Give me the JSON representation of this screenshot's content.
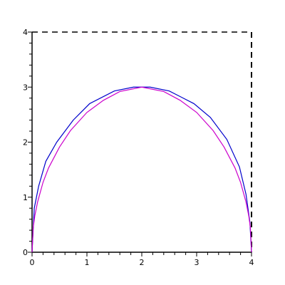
{
  "chart_data": {
    "type": "line",
    "title": "",
    "xlabel": "",
    "ylabel": "",
    "xlim": [
      0,
      4
    ],
    "ylim": [
      0,
      4
    ],
    "x_ticks": [
      "0",
      "1",
      "2",
      "3",
      "4"
    ],
    "y_ticks": [
      "0",
      "1",
      "2",
      "3",
      "4"
    ],
    "grid": false,
    "legend": "none",
    "frame_style": "dashed top and right edges",
    "series": [
      {
        "color": "#0000cc",
        "points": [
          [
            0.0,
            0.0
          ],
          [
            0.04,
            0.8
          ],
          [
            0.12,
            1.2
          ],
          [
            0.25,
            1.65
          ],
          [
            0.45,
            2.0
          ],
          [
            0.75,
            2.4
          ],
          [
            1.05,
            2.7
          ],
          [
            1.5,
            2.93
          ],
          [
            1.85,
            3.0
          ],
          [
            2.15,
            3.0
          ],
          [
            2.5,
            2.93
          ],
          [
            2.95,
            2.7
          ],
          [
            3.25,
            2.45
          ],
          [
            3.55,
            2.05
          ],
          [
            3.78,
            1.55
          ],
          [
            3.9,
            1.05
          ],
          [
            3.97,
            0.55
          ],
          [
            4.0,
            0.0
          ]
        ]
      },
      {
        "color": "#cc00cc",
        "points": [
          [
            0.0,
            0.0
          ],
          [
            0.02,
            0.44
          ],
          [
            0.05,
            0.66
          ],
          [
            0.1,
            0.91
          ],
          [
            0.2,
            1.27
          ],
          [
            0.3,
            1.53
          ],
          [
            0.5,
            1.91
          ],
          [
            0.7,
            2.21
          ],
          [
            1.0,
            2.54
          ],
          [
            1.3,
            2.76
          ],
          [
            1.6,
            2.92
          ],
          [
            2.0,
            3.0
          ],
          [
            2.4,
            2.92
          ],
          [
            2.7,
            2.76
          ],
          [
            3.0,
            2.54
          ],
          [
            3.3,
            2.21
          ],
          [
            3.5,
            1.91
          ],
          [
            3.7,
            1.53
          ],
          [
            3.8,
            1.27
          ],
          [
            3.9,
            0.91
          ],
          [
            3.95,
            0.66
          ],
          [
            3.98,
            0.44
          ],
          [
            4.0,
            0.0
          ]
        ]
      }
    ]
  }
}
